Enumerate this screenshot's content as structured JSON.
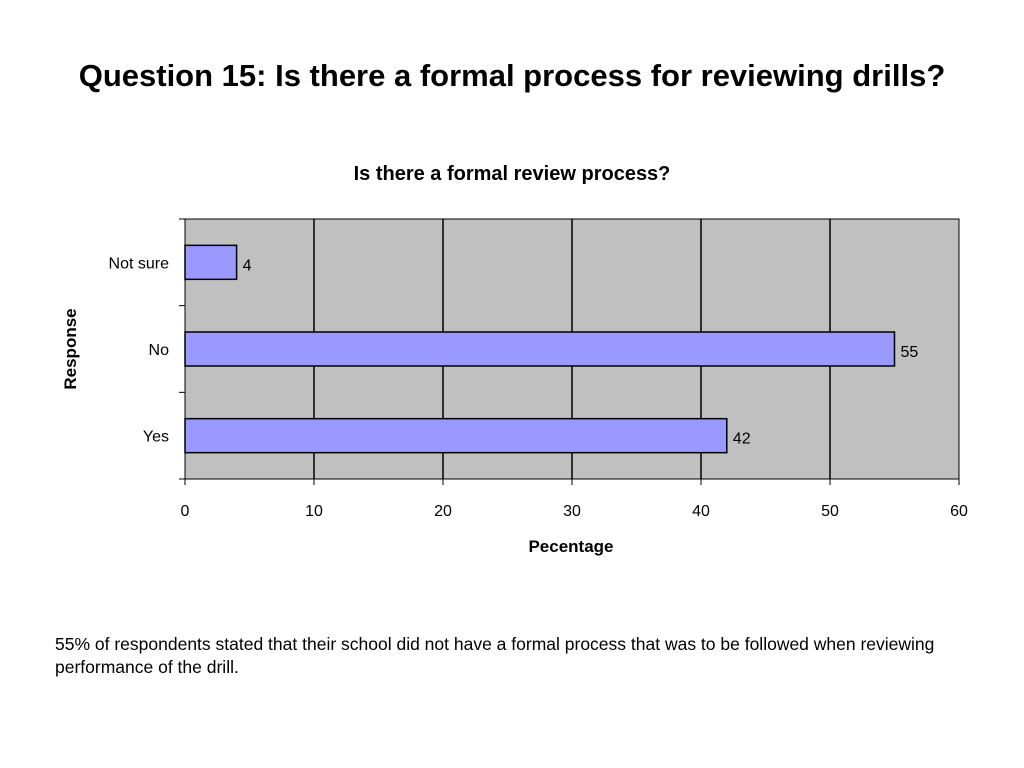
{
  "slide": {
    "title": "Question 15: Is there a formal process for reviewing drills?",
    "note": "55% of respondents stated that their school did not have a formal process that was to be followed when reviewing performance of the drill."
  },
  "colors": {
    "plot_background": "#c0c0c0",
    "bar_fill": "#9999ff",
    "bar_stroke": "#000000"
  },
  "chart_data": {
    "type": "bar",
    "orientation": "horizontal",
    "title": "Is there a formal review process?",
    "xlabel": "Pecentage",
    "ylabel": "Response",
    "categories": [
      "Not sure",
      "No",
      "Yes"
    ],
    "values": [
      4,
      55,
      42
    ],
    "data_labels": [
      "4",
      "55",
      "42"
    ],
    "xlim": [
      0,
      60
    ],
    "xticks": [
      0,
      10,
      20,
      30,
      40,
      50,
      60
    ],
    "xtick_labels": [
      "0",
      "10",
      "20",
      "30",
      "40",
      "50",
      "60"
    ],
    "grid": "vertical",
    "legend": "none"
  }
}
